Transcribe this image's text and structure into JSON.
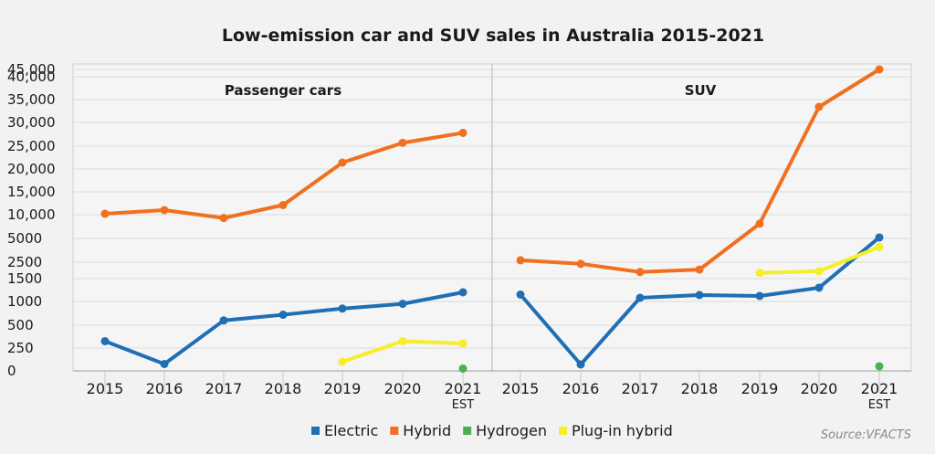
{
  "chart_data": {
    "type": "line",
    "title": "Low-emission car and SUV sales in Australia 2015-2021",
    "source": "Source:VFACTS",
    "y_tick_labels": [
      "0",
      "250",
      "500",
      "1000",
      "1500",
      "2500",
      "5000",
      "10,000",
      "15,000",
      "20,000",
      "25,000",
      "30,000",
      "35,000",
      "40,000",
      "45,000"
    ],
    "y_tick_values": [
      0,
      250,
      500,
      1000,
      1500,
      2500,
      5000,
      10000,
      15000,
      20000,
      25000,
      30000,
      35000,
      40000,
      45000
    ],
    "grid": true,
    "legend_position": "bottom",
    "legend": [
      {
        "name": "Electric",
        "color": "#1f6fb4"
      },
      {
        "name": "Hybrid",
        "color": "#f07020"
      },
      {
        "name": "Hydrogen",
        "color": "#4caf50"
      },
      {
        "name": "Plug-in hybrid",
        "color": "#f5ee2a"
      }
    ],
    "panels": [
      {
        "title": "Passenger cars",
        "x": [
          "2015",
          "2016",
          "2017",
          "2018",
          "2019",
          "2020",
          "2021"
        ],
        "x_sub": [
          "",
          "",
          "",
          "",
          "",
          "",
          "EST"
        ],
        "series": [
          {
            "name": "Electric",
            "color": "#1f6fb4",
            "values": [
              325,
              75,
              600,
              720,
              850,
              950,
              1200
            ]
          },
          {
            "name": "Hybrid",
            "color": "#f07020",
            "values": [
              10200,
              11000,
              9300,
              12100,
              21400,
              25700,
              27800
            ]
          },
          {
            "name": "Hydrogen",
            "color": "#4caf50",
            "values": [
              null,
              null,
              null,
              null,
              null,
              null,
              25
            ]
          },
          {
            "name": "Plug-in hybrid",
            "color": "#f5ee2a",
            "values": [
              null,
              null,
              null,
              null,
              100,
              325,
              300
            ]
          }
        ]
      },
      {
        "title": "SUV",
        "x": [
          "2015",
          "2016",
          "2017",
          "2018",
          "2019",
          "2020",
          "2021"
        ],
        "x_sub": [
          "",
          "",
          "",
          "",
          "",
          "",
          "EST"
        ],
        "series": [
          {
            "name": "Electric",
            "color": "#1f6fb4",
            "values": [
              1150,
              70,
              1080,
              1140,
              1120,
              1300,
              5200
            ]
          },
          {
            "name": "Hybrid",
            "color": "#f07020",
            "values": [
              2700,
              2400,
              1900,
              2050,
              8100,
              33400,
              45100
            ]
          },
          {
            "name": "Hydrogen",
            "color": "#4caf50",
            "values": [
              null,
              null,
              null,
              null,
              null,
              null,
              50
            ]
          },
          {
            "name": "Plug-in hybrid",
            "color": "#f5ee2a",
            "values": [
              null,
              null,
              null,
              null,
              1850,
              1950,
              4100
            ]
          }
        ]
      }
    ]
  }
}
